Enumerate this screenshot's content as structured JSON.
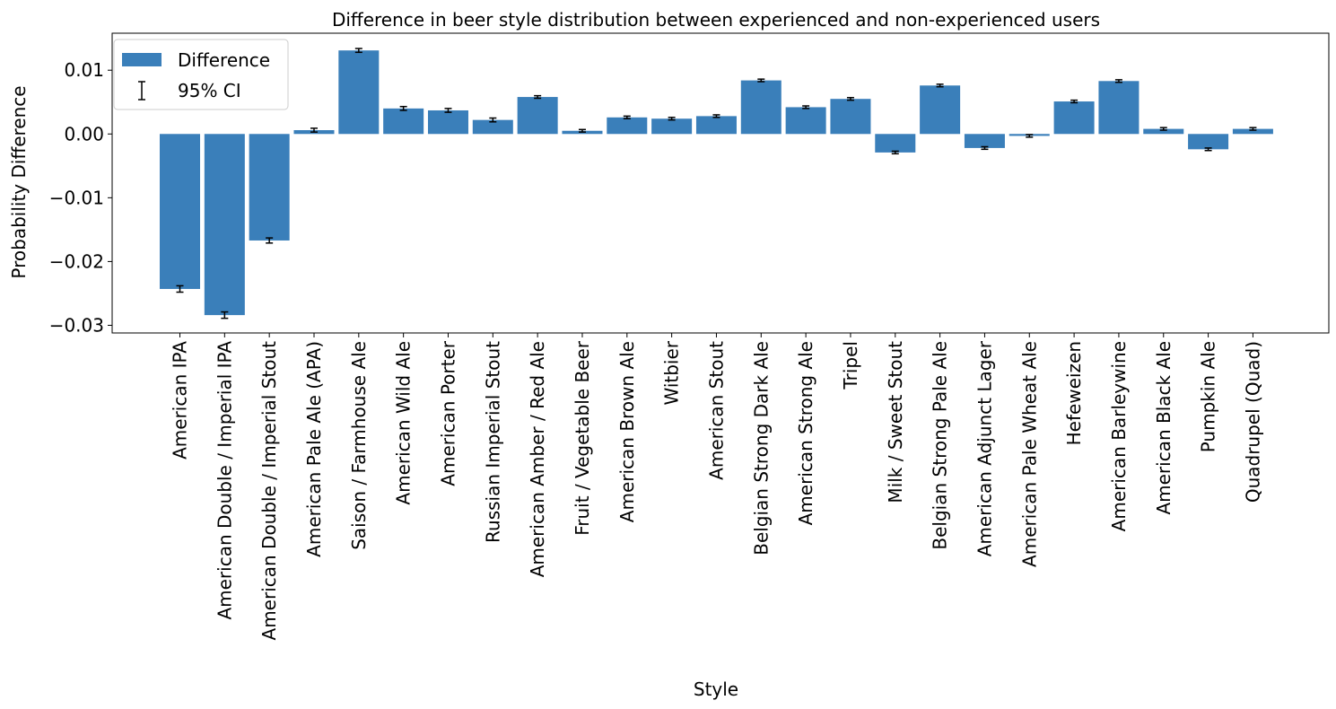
{
  "chart_data": {
    "type": "bar",
    "title": "Difference in beer style distribution between experienced and non-experienced users",
    "xlabel": "Style",
    "ylabel": "Probability Difference",
    "ylim": [
      -0.0312,
      0.0158
    ],
    "yticks": [
      0.01,
      0.0,
      -0.01,
      -0.02,
      -0.03
    ],
    "ytick_labels": [
      "0.01",
      "0.00",
      "−0.01",
      "−0.02",
      "−0.03"
    ],
    "grid": false,
    "legend_position": "top-left",
    "bar_color": "#3a7fba",
    "errorbar_color": "#000000",
    "legend": [
      {
        "label": "Difference",
        "kind": "bar"
      },
      {
        "label": "95% CI",
        "kind": "errorbar"
      }
    ],
    "categories": [
      "American IPA",
      "American Double / Imperial IPA",
      "American Double / Imperial Stout",
      "American Pale Ale (APA)",
      "Saison / Farmhouse Ale",
      "American Wild Ale",
      "American Porter",
      "Russian Imperial Stout",
      "American Amber / Red Ale",
      "Fruit / Vegetable Beer",
      "American Brown Ale",
      "Witbier",
      "American Stout",
      "Belgian Strong Dark Ale",
      "American Strong Ale",
      "Tripel",
      "Milk / Sweet Stout",
      "Belgian Strong Pale Ale",
      "American Adjunct Lager",
      "American Pale Wheat Ale",
      "Hefeweizen",
      "American Barleywine",
      "American Black Ale",
      "Pumpkin Ale",
      "Quadrupel (Quad)"
    ],
    "series": [
      {
        "name": "Difference",
        "values": [
          -0.0243,
          -0.0284,
          -0.0167,
          0.0006,
          0.0131,
          0.004,
          0.0037,
          0.0022,
          0.0058,
          0.0005,
          0.0026,
          0.0024,
          0.0028,
          0.0084,
          0.0042,
          0.0055,
          -0.0029,
          0.0076,
          -0.0022,
          -0.0003,
          0.0051,
          0.0083,
          0.0008,
          -0.0024,
          0.0008
        ],
        "ci_halfwidth": [
          0.0005,
          0.0005,
          0.0004,
          0.0003,
          0.0003,
          0.0003,
          0.0003,
          0.0003,
          0.0002,
          0.0002,
          0.0002,
          0.0002,
          0.0002,
          0.0002,
          0.0002,
          0.0002,
          0.0002,
          0.0002,
          0.0002,
          0.0002,
          0.0002,
          0.0002,
          0.0002,
          0.0002,
          0.0002
        ]
      }
    ]
  }
}
